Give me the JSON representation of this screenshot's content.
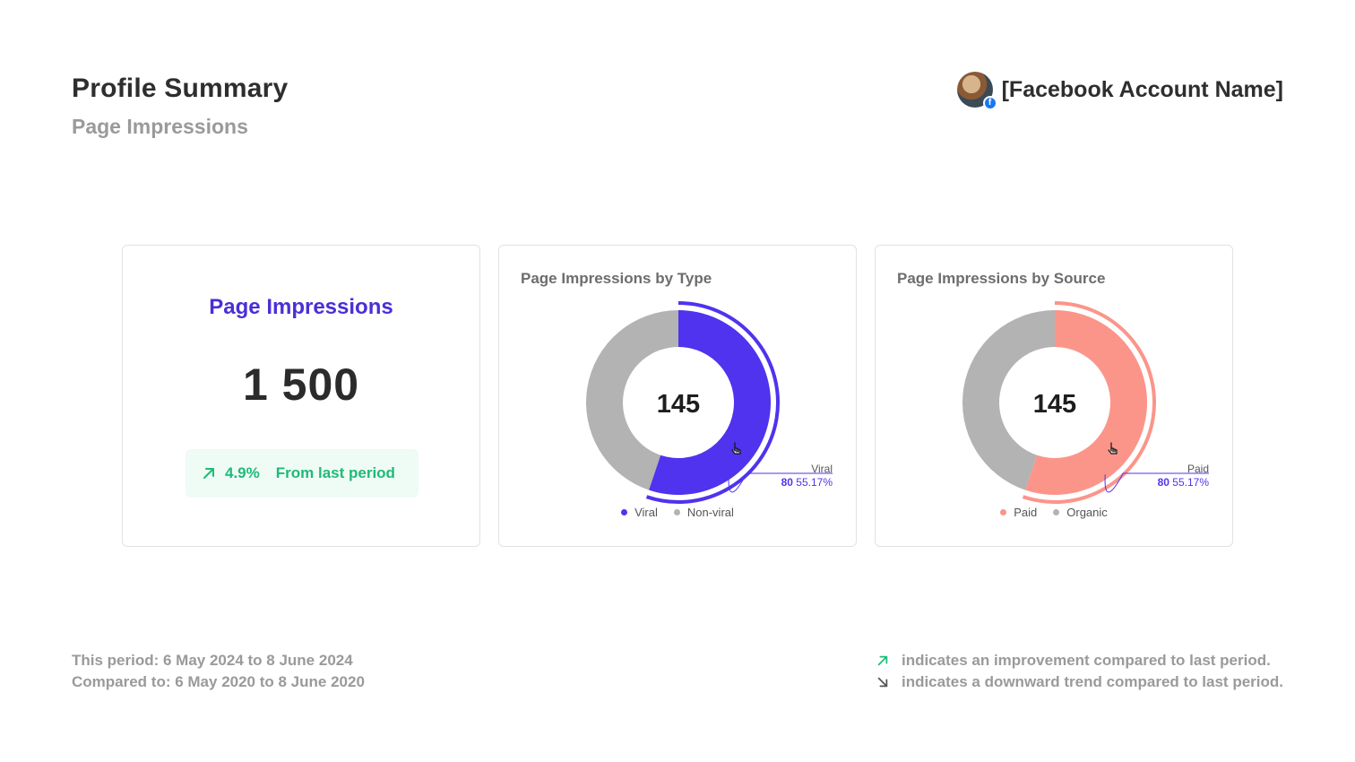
{
  "header": {
    "title": "Profile Summary",
    "subtitle": "Page Impressions",
    "account_name": "[Facebook Account Name]",
    "avatar_icon": "dog-avatar",
    "badge_icon": "facebook-icon",
    "badge_glyph": "f"
  },
  "kpi": {
    "label": "Page Impressions",
    "value": "1 500",
    "trend_icon": "arrow-up-right-icon",
    "trend_pct": "4.9%",
    "trend_text": "From last period"
  },
  "colors": {
    "primary": "#4f33ee",
    "grey": "#b3b3b3",
    "salmon": "#fb958a",
    "green": "#1fba78",
    "kpi_label": "#4a2fd6"
  },
  "charts": {
    "type_chart": {
      "title": "Page Impressions by Type",
      "center": "145",
      "callout_label": "Viral",
      "callout_value": "80",
      "callout_pct": "55.17%",
      "legend": [
        {
          "label": "Viral",
          "color": "#4f33ee"
        },
        {
          "label": "Non-viral",
          "color": "#b3b3b3"
        }
      ]
    },
    "source_chart": {
      "title": "Page Impressions by Source",
      "center": "145",
      "callout_label": "Paid",
      "callout_value": "80",
      "callout_pct": "55.17%",
      "legend": [
        {
          "label": "Paid",
          "color": "#fb958a"
        },
        {
          "label": "Organic",
          "color": "#b3b3b3"
        }
      ]
    }
  },
  "chart_data": [
    {
      "type": "pie",
      "title": "Page Impressions by Type",
      "categories": [
        "Viral",
        "Non-viral"
      ],
      "values": [
        80,
        65
      ],
      "total": 145,
      "highlight": {
        "label": "Viral",
        "value": 80,
        "percent": 55.17
      }
    },
    {
      "type": "pie",
      "title": "Page Impressions by Source",
      "categories": [
        "Paid",
        "Organic"
      ],
      "values": [
        80,
        65
      ],
      "total": 145,
      "highlight": {
        "label": "Paid",
        "value": 80,
        "percent": 55.17
      }
    }
  ],
  "footer": {
    "this_period": "This period: 6 May 2024 to 8 June 2024",
    "compared_to": "Compared to: 6 May 2020 to 8 June 2020",
    "up_icon": "arrow-up-right-icon",
    "down_icon": "arrow-down-right-icon",
    "up_note": "indicates an improvement compared to last period.",
    "down_note": "indicates a downward trend compared to last period."
  }
}
